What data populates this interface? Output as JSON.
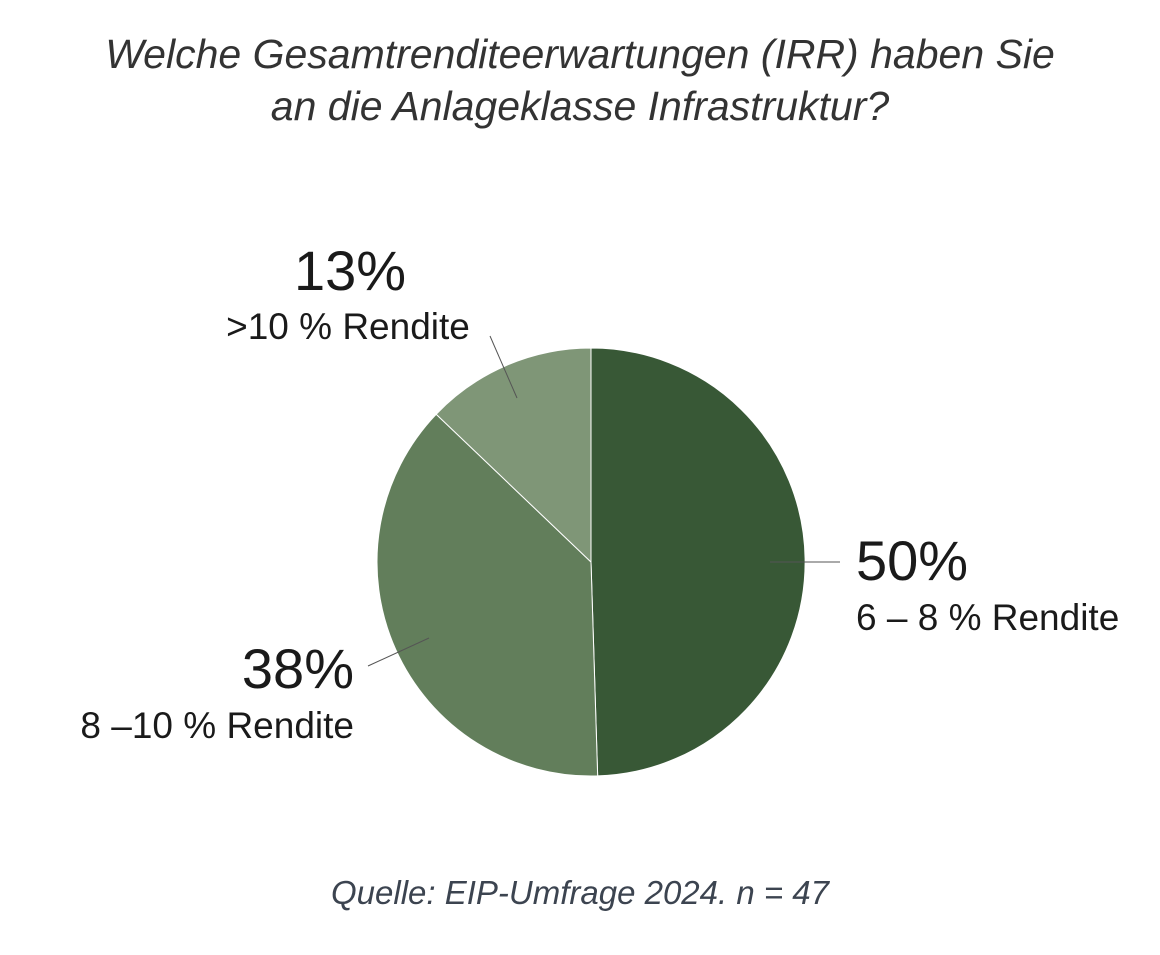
{
  "title_lines": [
    "Welche Gesamtrenditeerwartungen (IRR) haben Sie",
    "an die Anlageklasse Infrastruktur?"
  ],
  "source": "Quelle: EIP-Umfrage 2024. n = 47",
  "chart_data": {
    "type": "pie",
    "title": "Welche Gesamtrenditeerwartungen (IRR) haben Sie an die Anlageklasse Infrastruktur?",
    "slices": [
      {
        "label": "6 – 8 % Rendite",
        "value": 50,
        "value_label": "50%",
        "color": "#385836"
      },
      {
        "label": "8 –10 % Rendite",
        "value": 38,
        "value_label": "38%",
        "color": "#627e5b"
      },
      {
        "label": ">10 % Rendite",
        "value": 13,
        "value_label": "13%",
        "color": "#7f9677"
      }
    ],
    "start_position": "top",
    "direction": "clockwise",
    "legend": "none"
  }
}
